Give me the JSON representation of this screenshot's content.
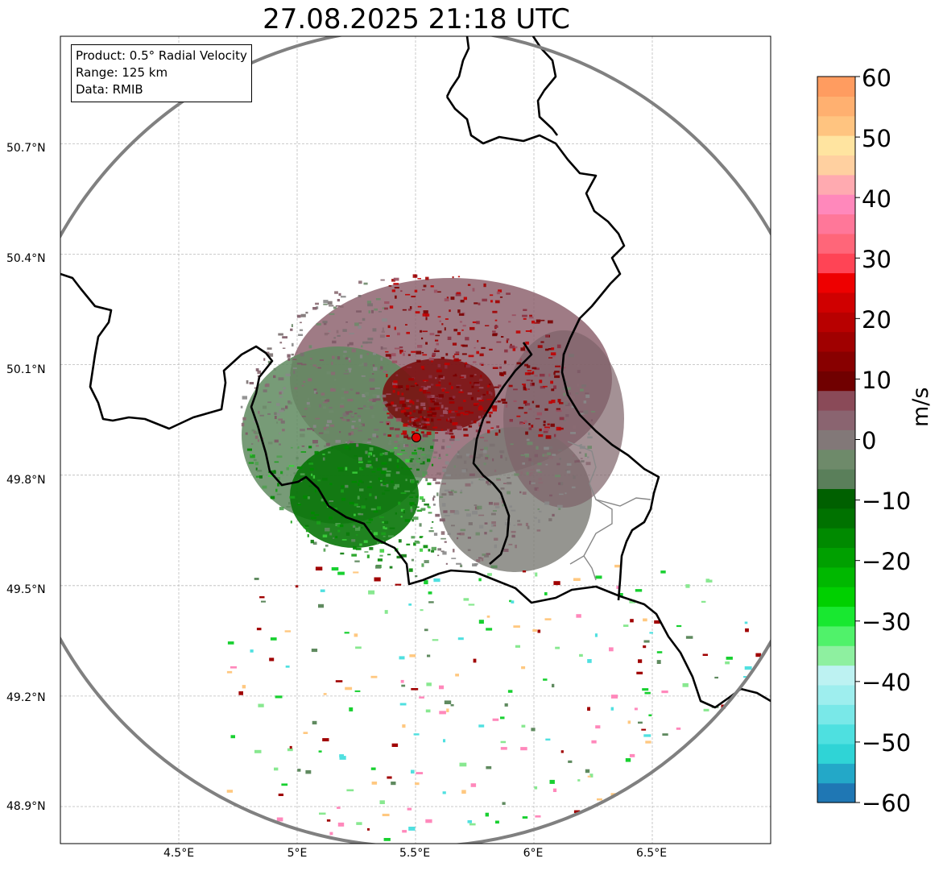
{
  "title": "27.08.2025 21:18 UTC",
  "info_box": {
    "line1": "Product: 0.5° Radial Velocity",
    "line2": "Range: 125 km",
    "line3": "Data: RMIB"
  },
  "map": {
    "lon_range": [
      4.0,
      7.0
    ],
    "lat_range": [
      48.8,
      50.98
    ],
    "radar_site": {
      "lon": 5.505,
      "lat": 49.914
    },
    "lon_ticks": [
      "4.5°E",
      "5°E",
      "5.5°E",
      "6°E",
      "6.5°E"
    ],
    "lat_ticks": [
      "48.9°N",
      "49.2°N",
      "49.5°N",
      "49.8°N",
      "50.1°N",
      "50.4°N",
      "50.7°N"
    ],
    "grid": true,
    "range_ring_km": 125
  },
  "colorbar": {
    "unit": "m/s",
    "min": -60,
    "max": 60,
    "ticks": [
      "60",
      "50",
      "40",
      "30",
      "20",
      "10",
      "0",
      "−10",
      "−20",
      "−30",
      "−40",
      "−50",
      "−60"
    ],
    "colors": [
      "#1f77b4",
      "#23a8c8",
      "#2fd4d6",
      "#4ee0e0",
      "#79e8e8",
      "#9eeeee",
      "#bdf2f2",
      "#8ef0a0",
      "#50f26a",
      "#18e830",
      "#00d000",
      "#00b800",
      "#00a000",
      "#008a00",
      "#007200",
      "#006000",
      "#5a7f5a",
      "#6e8a6a",
      "#827878",
      "#8a6470",
      "#8a4a58",
      "#700000",
      "#880000",
      "#a00000",
      "#b80000",
      "#d00000",
      "#ee0000",
      "#ff4455",
      "#ff6679",
      "#ff7799",
      "#ff88bb",
      "#ffaab0",
      "#ffd0a0",
      "#ffe4a0",
      "#ffc480",
      "#ffb070",
      "#ff9c60"
    ],
    "color_meaning": "radial velocity: negative (toward radar) green/cyan/blue, positive (away) red/pink/orange"
  }
}
